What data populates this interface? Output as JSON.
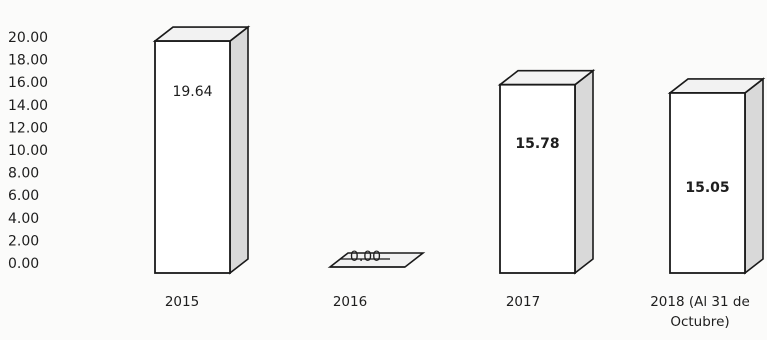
{
  "chart_data": {
    "type": "bar",
    "style": "3d-column",
    "categories": [
      "2015",
      "2016",
      "2017",
      "2018 (Al 31 de Octubre)"
    ],
    "category_lines": [
      [
        "2015"
      ],
      [
        "2016"
      ],
      [
        "2017"
      ],
      [
        "2018 (Al 31 de",
        "Octubre)"
      ]
    ],
    "values": [
      19.64,
      0.0,
      15.78,
      15.05
    ],
    "value_labels": [
      "19.64",
      "0.00",
      "15.78",
      "15.05"
    ],
    "label_bold": [
      false,
      false,
      true,
      true
    ],
    "ylim": [
      0,
      20
    ],
    "yticks": [
      "0.00",
      "2.00",
      "4.00",
      "6.00",
      "8.00",
      "10.00",
      "12.00",
      "14.00",
      "16.00",
      "18.00",
      "20.00"
    ],
    "title": "",
    "xlabel": "",
    "ylabel": "",
    "grid": false,
    "legend": "none",
    "colors": {
      "bar_front": "#ffffff",
      "bar_top": "#f2f2f2",
      "bar_side": "#d9d9d9",
      "outline": "#1a1a1a"
    }
  }
}
